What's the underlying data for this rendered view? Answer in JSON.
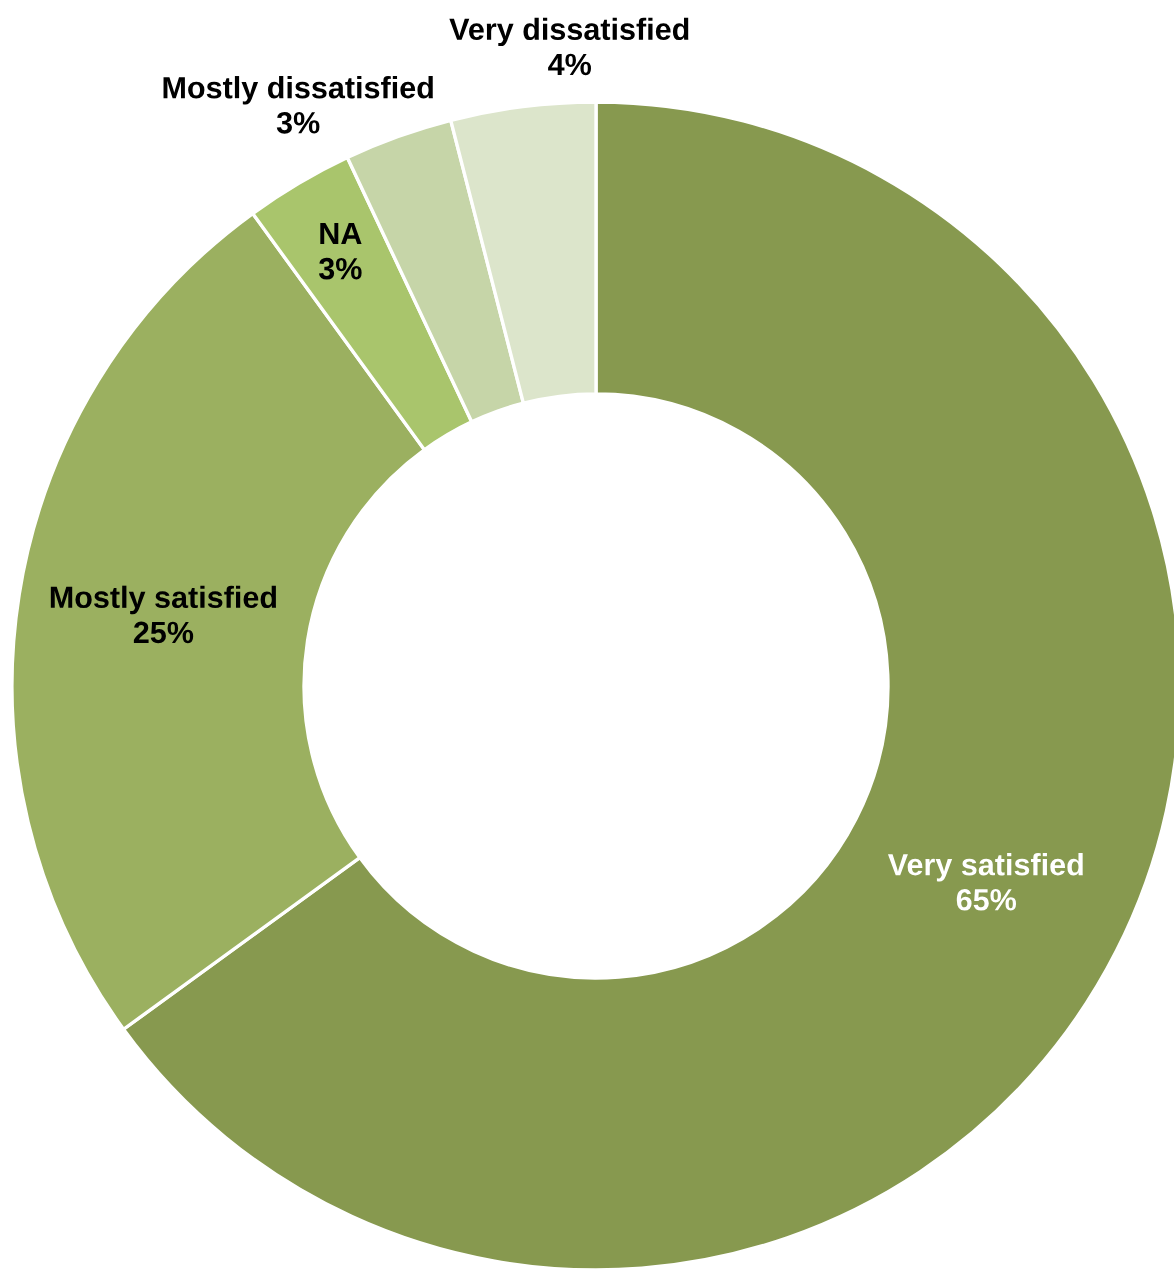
{
  "chart_data": {
    "type": "donut",
    "categories": [
      "Very satisfied",
      "Mostly satisfied",
      "NA",
      "Mostly dissatisfied",
      "Very dissatisfied"
    ],
    "values": [
      65,
      25,
      3,
      3,
      4
    ],
    "colors": [
      "#87994f",
      "#9bb060",
      "#a9c56c",
      "#c6d5a8",
      "#dce5cb"
    ],
    "value_labels": [
      "65%",
      "25%",
      "3%",
      "3%",
      "4%"
    ]
  }
}
